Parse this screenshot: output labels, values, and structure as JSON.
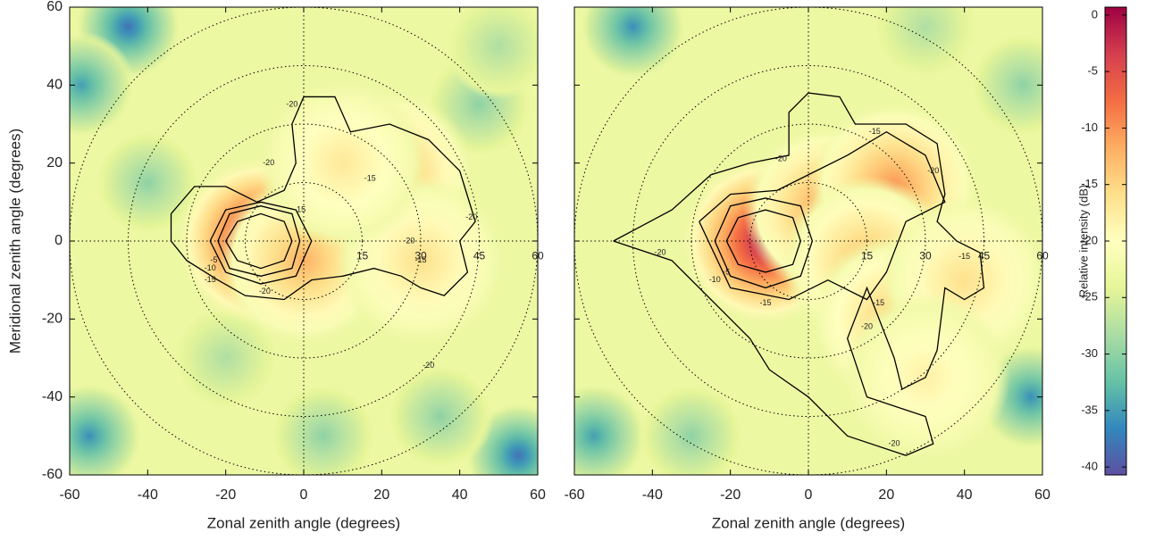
{
  "chart_data": [
    {
      "type": "heatmap",
      "xlabel": "Zonal zenith angle (degrees)",
      "ylabel": "Meridional zenith angle (degrees)",
      "xlim": [
        -60,
        60
      ],
      "ylim": [
        -60,
        60
      ],
      "xticks": [
        -60,
        -40,
        -20,
        0,
        20,
        40,
        60
      ],
      "yticks": [
        -60,
        -40,
        -20,
        0,
        20,
        40,
        60
      ],
      "ytick_labels": true,
      "base_level": -23,
      "rings": [
        15,
        30,
        45,
        60
      ],
      "peaks": {
        "x": [
          -45,
          55,
          -55,
          -57,
          45,
          -40,
          35,
          5,
          -20,
          50,
          -11,
          0,
          22,
          30,
          10
        ],
        "y": [
          55,
          -55,
          -50,
          40,
          35,
          15,
          -45,
          -50,
          -30,
          50,
          0,
          -5,
          17,
          -5,
          20
        ],
        "values": [
          -38,
          -38,
          -36,
          -35,
          -30,
          -30,
          -30,
          -30,
          -28,
          -28,
          0,
          -12,
          -12,
          -16,
          -17
        ]
      },
      "contours": [
        {
          "level": -20,
          "x": [
            -34,
            -28,
            -20,
            -12,
            -5,
            -2,
            -3,
            0,
            8,
            12,
            22,
            32,
            40,
            44,
            40,
            42,
            36,
            30,
            25,
            18,
            10,
            2,
            -5,
            -15,
            -22,
            -30,
            -34,
            -34
          ],
          "y": [
            7,
            14,
            14,
            10,
            13,
            20,
            30,
            37,
            37,
            28,
            30,
            26,
            18,
            5,
            0,
            -8,
            -14,
            -12,
            -9,
            -7,
            -9,
            -10,
            -15,
            -14,
            -10,
            -5,
            0,
            7
          ]
        },
        {
          "level": -15,
          "x": [
            -24,
            -20,
            -11,
            -2,
            2,
            -2,
            -11,
            -20,
            -24
          ],
          "y": [
            0,
            8,
            10,
            8,
            0,
            -9,
            -11,
            -8,
            0
          ]
        },
        {
          "level": -10,
          "x": [
            -22,
            -19,
            -11,
            -3,
            -1,
            -3,
            -11,
            -19,
            -22
          ],
          "y": [
            0,
            7,
            9,
            7,
            0,
            -7,
            -9,
            -7,
            0
          ]
        },
        {
          "level": -5,
          "x": [
            -20,
            -17,
            -11,
            -5,
            -3,
            -5,
            -11,
            -17,
            -20
          ],
          "y": [
            0,
            5,
            7,
            5,
            0,
            -5,
            -7,
            -5,
            0
          ]
        }
      ],
      "contour_labels": {
        "x": [
          -3,
          -9,
          17,
          -1,
          43,
          27,
          30,
          -24,
          -23,
          -24,
          -10,
          32
        ],
        "y": [
          35,
          20,
          16,
          8,
          6,
          0,
          -5,
          -7,
          -5,
          -10,
          -13,
          -32
        ],
        "values": [
          -20,
          -20,
          -15,
          -15,
          -20,
          -20,
          -15,
          -10,
          -5,
          -15,
          -20,
          -20
        ]
      }
    },
    {
      "type": "heatmap",
      "xlabel": "Zonal zenith angle (degrees)",
      "xlim": [
        -60,
        60
      ],
      "ylim": [
        -60,
        60
      ],
      "xticks": [
        -60,
        -40,
        -20,
        0,
        20,
        40,
        60
      ],
      "yticks": [
        -60,
        -40,
        -20,
        0,
        20,
        40,
        60
      ],
      "ytick_labels": false,
      "base_level": -23,
      "rings": [
        15,
        30,
        45,
        60
      ],
      "peaks": {
        "x": [
          -45,
          57,
          -55,
          -30,
          55,
          30,
          -11,
          5,
          22,
          15,
          22,
          40,
          30
        ],
        "y": [
          55,
          -40,
          -50,
          -50,
          40,
          55,
          0,
          8,
          14,
          -5,
          -20,
          -10,
          -35
        ],
        "values": [
          -36,
          -36,
          -35,
          -30,
          -30,
          -28,
          0,
          -10,
          -10,
          -13,
          -14,
          -16,
          -18
        ]
      },
      "contours": [
        {
          "level": -20,
          "x": [
            -50,
            -35,
            -25,
            -15,
            -5,
            -5,
            0,
            8,
            12,
            25,
            33,
            35,
            33,
            38,
            44,
            45,
            40,
            35,
            33,
            30,
            24,
            22,
            15,
            10,
            15,
            30,
            32,
            25,
            10,
            0,
            -10,
            -15,
            -22,
            -35,
            -50
          ],
          "y": [
            0,
            8,
            17,
            20,
            22,
            33,
            38,
            37,
            30,
            30,
            25,
            12,
            5,
            0,
            -3,
            -12,
            -15,
            -12,
            -28,
            -35,
            -38,
            -30,
            -12,
            -25,
            -40,
            -45,
            -52,
            -55,
            -50,
            -40,
            -33,
            -25,
            -18,
            -5,
            0
          ]
        },
        {
          "level": -15,
          "x": [
            -28,
            -20,
            -8,
            0,
            10,
            20,
            30,
            35,
            25,
            20,
            15,
            5,
            -5,
            -20,
            -28
          ],
          "y": [
            5,
            12,
            13,
            17,
            22,
            28,
            22,
            10,
            5,
            -8,
            -15,
            -10,
            -15,
            -12,
            5
          ]
        },
        {
          "level": -10,
          "x": [
            -24,
            -20,
            -11,
            -2,
            1,
            -2,
            -11,
            -20,
            -24
          ],
          "y": [
            0,
            9,
            11,
            9,
            0,
            -9,
            -12,
            -9,
            0
          ]
        },
        {
          "level": -5,
          "x": [
            -21,
            -18,
            -11,
            -4,
            -2,
            -4,
            -11,
            -18,
            -21
          ],
          "y": [
            0,
            6,
            8,
            6,
            0,
            -6,
            -8,
            -6,
            0
          ]
        }
      ],
      "contour_labels": {
        "x": [
          17,
          -7,
          32,
          -11,
          -24,
          -21,
          18,
          15,
          40,
          -38,
          22
        ],
        "y": [
          28,
          21,
          18,
          -16,
          -10,
          -8,
          -16,
          -22,
          -4,
          -3,
          -52
        ],
        "values": [
          -15,
          -20,
          -20,
          -15,
          -10,
          -5,
          -15,
          -20,
          -15,
          -20,
          -20
        ]
      }
    }
  ],
  "colorbar": {
    "label": "Relative intensity (dB)",
    "lim": [
      -40.7,
      0.7
    ],
    "ticks": [
      0,
      -5,
      -10,
      -15,
      -20,
      -25,
      -30,
      -35,
      -40
    ],
    "colormap": [
      "#5e4fa2",
      "#3288bd",
      "#66c2a5",
      "#abdda4",
      "#e6f598",
      "#ffffbf",
      "#fee08b",
      "#fdae61",
      "#f46d43",
      "#d53e4f",
      "#9e0142"
    ]
  }
}
